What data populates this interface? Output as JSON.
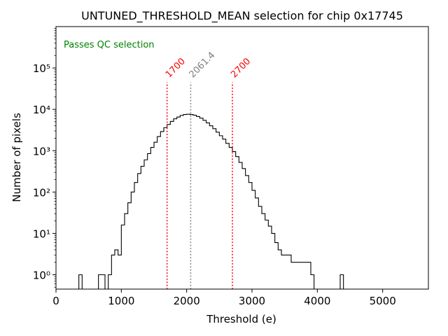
{
  "chart_data": {
    "type": "histogram",
    "title": "UNTUNED_THRESHOLD_MEAN selection for chip 0x17745",
    "xlabel": "Threshold (e)",
    "ylabel": "Number of pixels",
    "xlim": [
      0,
      5700
    ],
    "ylim": [
      0.45,
      1000000
    ],
    "yscale": "log",
    "xticks": [
      0,
      1000,
      2000,
      3000,
      4000,
      5000
    ],
    "xtick_labels": [
      "0",
      "1000",
      "2000",
      "3000",
      "4000",
      "5000"
    ],
    "yticks": [
      1,
      10,
      100,
      1000,
      10000,
      100000
    ],
    "ytick_labels": [
      "10⁰",
      "10¹",
      "10²",
      "10³",
      "10⁴",
      "10⁵"
    ],
    "annotation": "Passes QC selection",
    "annotation_color": "#008000",
    "line_color": "#000000",
    "vlines": [
      {
        "x": 1700,
        "label": "1700",
        "color": "#ff0000",
        "ymax": 45000
      },
      {
        "x": 2061.4,
        "label": "2061.4",
        "color": "#808080",
        "ymax": 45000
      },
      {
        "x": 2700,
        "label": "2700",
        "color": "#ff0000",
        "ymax": 45000
      }
    ],
    "bin_width": 50,
    "bins": [
      [
        300,
        350,
        0
      ],
      [
        350,
        400,
        1
      ],
      [
        400,
        650,
        0
      ],
      [
        650,
        750,
        1
      ],
      [
        750,
        800,
        0
      ],
      [
        800,
        850,
        1
      ],
      [
        850,
        900,
        3
      ],
      [
        900,
        950,
        4
      ],
      [
        950,
        1000,
        3
      ],
      [
        1000,
        1050,
        16
      ],
      [
        1050,
        1100,
        30
      ],
      [
        1100,
        1150,
        55
      ],
      [
        1150,
        1200,
        100
      ],
      [
        1200,
        1250,
        170
      ],
      [
        1250,
        1300,
        280
      ],
      [
        1300,
        1350,
        420
      ],
      [
        1350,
        1400,
        600
      ],
      [
        1400,
        1450,
        850
      ],
      [
        1450,
        1500,
        1200
      ],
      [
        1500,
        1550,
        1600
      ],
      [
        1550,
        1600,
        2200
      ],
      [
        1600,
        1650,
        2900
      ],
      [
        1650,
        1700,
        3600
      ],
      [
        1700,
        1750,
        4300
      ],
      [
        1750,
        1800,
        5100
      ],
      [
        1800,
        1850,
        5900
      ],
      [
        1850,
        1900,
        6500
      ],
      [
        1900,
        1950,
        7100
      ],
      [
        1950,
        2000,
        7500
      ],
      [
        2000,
        2050,
        7600
      ],
      [
        2050,
        2100,
        7500
      ],
      [
        2100,
        2150,
        7200
      ],
      [
        2150,
        2200,
        6700
      ],
      [
        2200,
        2250,
        6100
      ],
      [
        2250,
        2300,
        5400
      ],
      [
        2300,
        2350,
        4700
      ],
      [
        2350,
        2400,
        4000
      ],
      [
        2400,
        2450,
        3400
      ],
      [
        2450,
        2500,
        2800
      ],
      [
        2500,
        2550,
        2300
      ],
      [
        2550,
        2600,
        1900
      ],
      [
        2600,
        2650,
        1500
      ],
      [
        2650,
        2700,
        1200
      ],
      [
        2700,
        2750,
        950
      ],
      [
        2750,
        2800,
        720
      ],
      [
        2800,
        2850,
        520
      ],
      [
        2850,
        2900,
        370
      ],
      [
        2900,
        2950,
        250
      ],
      [
        2950,
        3000,
        170
      ],
      [
        3000,
        3050,
        110
      ],
      [
        3050,
        3100,
        72
      ],
      [
        3100,
        3150,
        45
      ],
      [
        3150,
        3200,
        30
      ],
      [
        3200,
        3250,
        21
      ],
      [
        3250,
        3300,
        15
      ],
      [
        3300,
        3350,
        10
      ],
      [
        3350,
        3400,
        6
      ],
      [
        3400,
        3450,
        4
      ],
      [
        3450,
        3500,
        3
      ],
      [
        3500,
        3550,
        3
      ],
      [
        3550,
        3600,
        3
      ],
      [
        3600,
        3650,
        2
      ],
      [
        3650,
        3900,
        2
      ],
      [
        3900,
        3950,
        1
      ],
      [
        3950,
        4000,
        0
      ],
      [
        4000,
        4350,
        0
      ],
      [
        4350,
        4400,
        1
      ],
      [
        4400,
        4450,
        0
      ]
    ]
  }
}
